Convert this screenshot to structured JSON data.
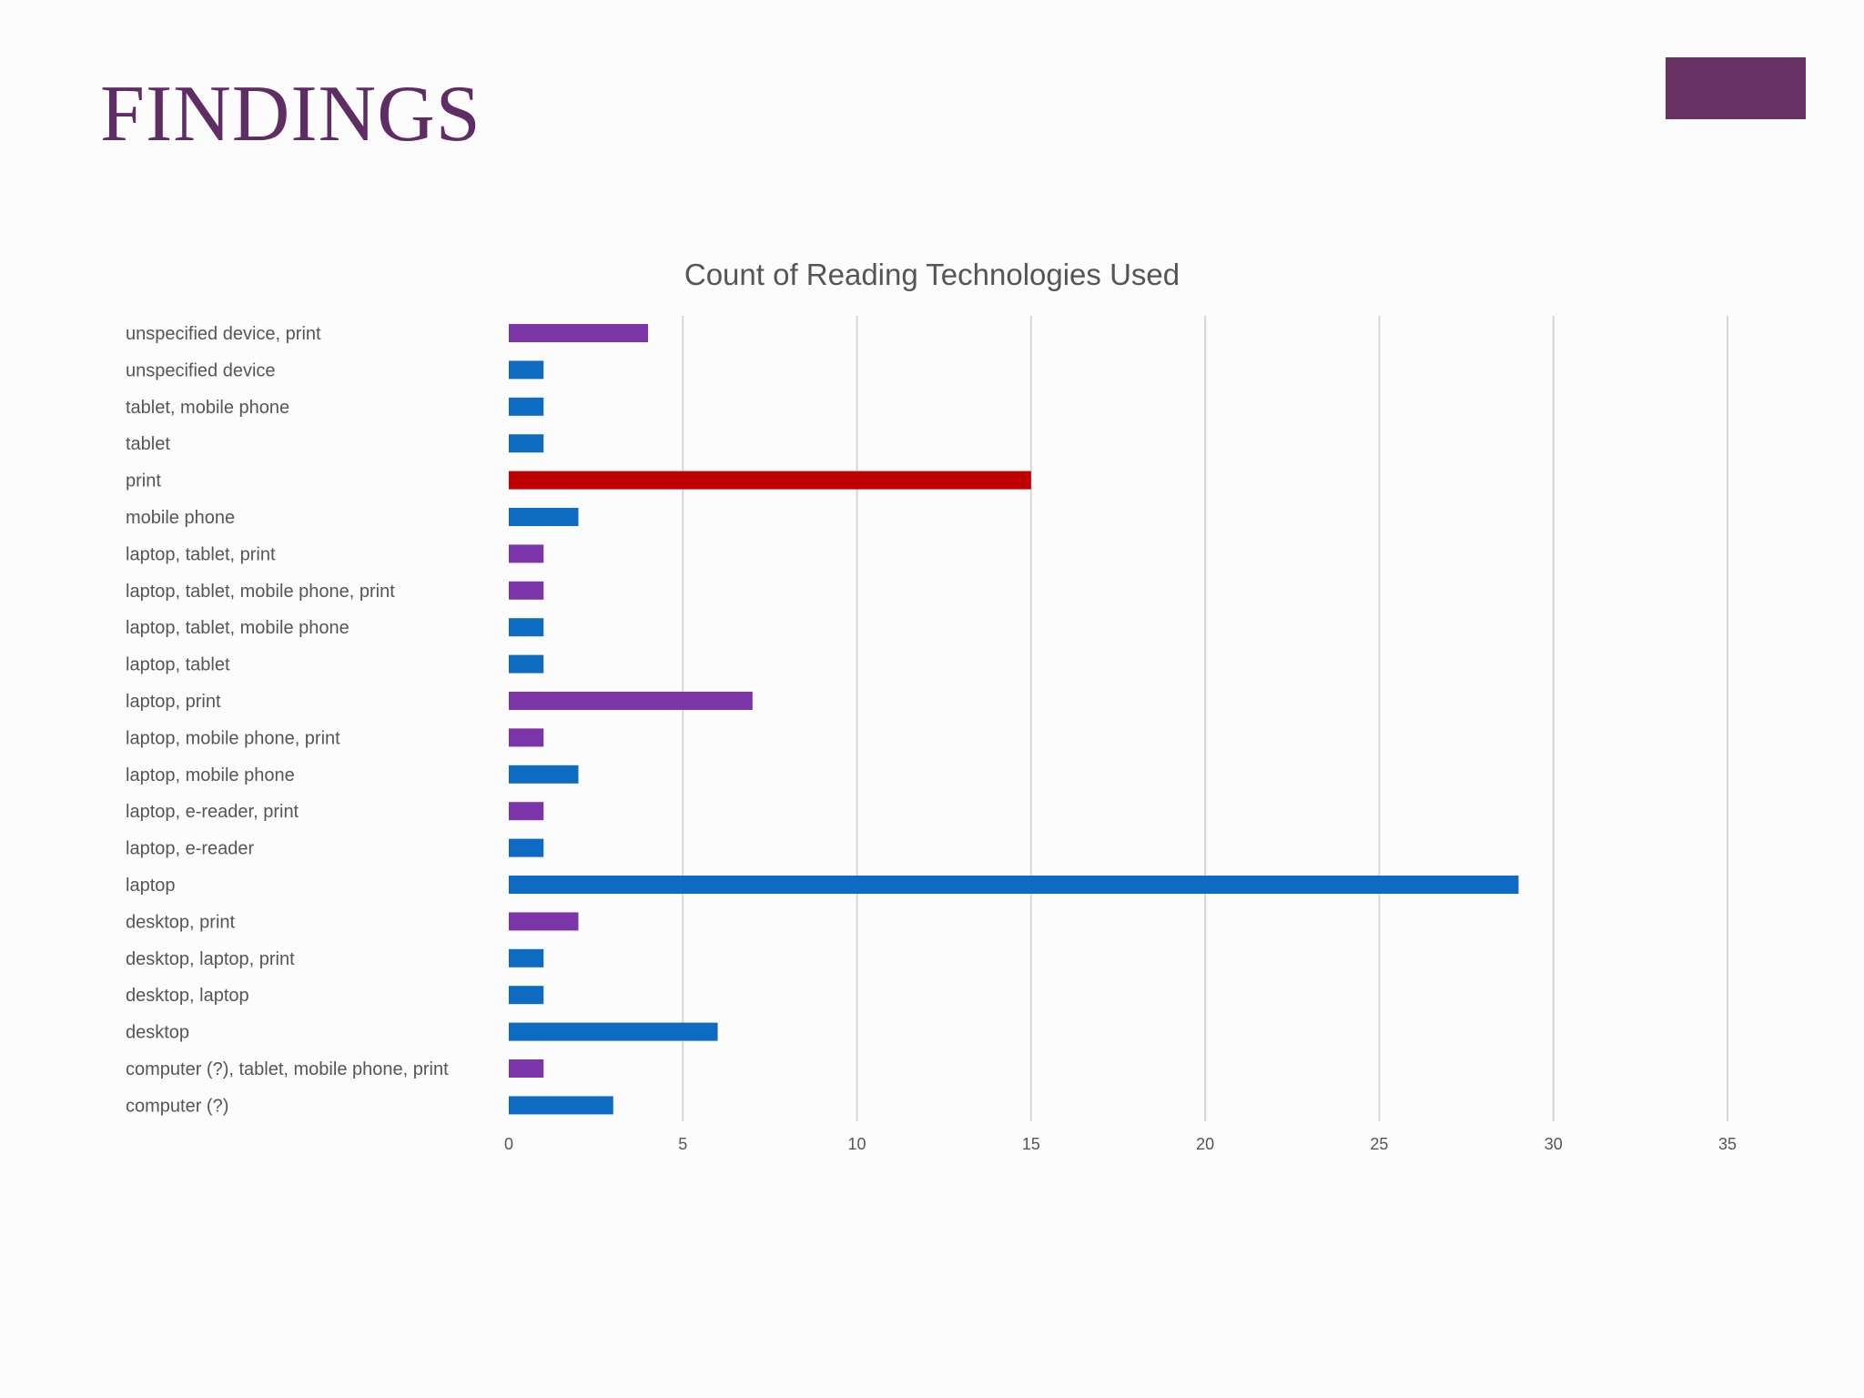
{
  "slide": {
    "title": "FINDINGS"
  },
  "colors": {
    "title": "#5e2d63",
    "accent_block": "#693265",
    "print_mix": "#7b35a8",
    "digital": "#0d6bc2",
    "print_only": "#c00000",
    "grid": "#d6d6d6",
    "text": "#555555"
  },
  "chart_data": {
    "type": "bar",
    "orientation": "horizontal",
    "title": "Count of Reading Technologies Used",
    "xlabel": "",
    "ylabel": "",
    "xlim": [
      0,
      35
    ],
    "xticks": [
      0,
      5,
      10,
      15,
      20,
      25,
      30,
      35
    ],
    "grid": true,
    "legend": "none",
    "categories": [
      "unspecified device, print",
      "unspecified device",
      "tablet, mobile phone",
      "tablet",
      "print",
      "mobile phone",
      "laptop, tablet, print",
      "laptop, tablet, mobile phone, print",
      "laptop, tablet, mobile phone",
      "laptop, tablet",
      "laptop, print",
      "laptop, mobile phone, print",
      "laptop, mobile phone",
      "laptop, e-reader, print",
      "laptop, e-reader",
      "laptop",
      "desktop, print",
      "desktop, laptop, print",
      "desktop, laptop",
      "desktop",
      "computer (?), tablet, mobile phone, print",
      "computer (?)"
    ],
    "values": [
      4,
      1,
      1,
      1,
      15,
      2,
      1,
      1,
      1,
      1,
      7,
      1,
      2,
      1,
      1,
      29,
      2,
      1,
      1,
      6,
      1,
      3
    ],
    "bar_colors": [
      "#7b35a8",
      "#0d6bc2",
      "#0d6bc2",
      "#0d6bc2",
      "#c00000",
      "#0d6bc2",
      "#7b35a8",
      "#7b35a8",
      "#0d6bc2",
      "#0d6bc2",
      "#7b35a8",
      "#7b35a8",
      "#0d6bc2",
      "#7b35a8",
      "#0d6bc2",
      "#0d6bc2",
      "#7b35a8",
      "#0d6bc2",
      "#0d6bc2",
      "#0d6bc2",
      "#7b35a8",
      "#0d6bc2"
    ]
  }
}
